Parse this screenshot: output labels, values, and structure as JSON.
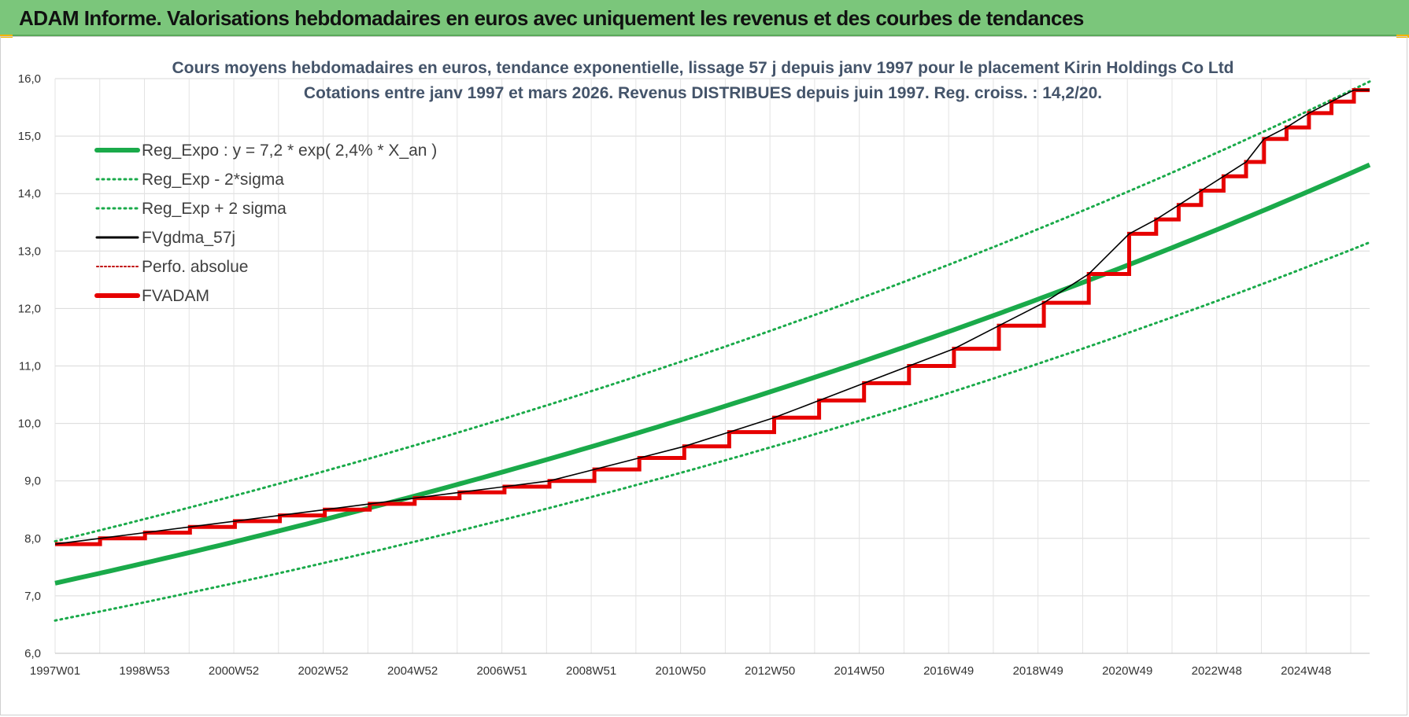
{
  "header": {
    "title": "ADAM Informe. Valorisations hebdomadaires en euros avec uniquement les revenus et des courbes de tendances"
  },
  "colors": {
    "header_bg": "#7bc67b",
    "green": "#1aaa4a",
    "red": "#e60000",
    "black": "#000000",
    "dark_red": "#c00000",
    "title_text": "#44546a",
    "accent_corner": "#f2b400"
  },
  "chart_data": {
    "type": "line",
    "title_line1": "Cours moyens hebdomadaires en euros, tendance exponentielle, lissage 57 j depuis janv 1997 pour le placement Kirin Holdings Co Ltd",
    "title_line2": "Cotations entre janv 1997 et mars 2026. Revenus DISTRIBUES depuis juin 1997. Reg. croiss. : 14,2/20.",
    "x_ticks": [
      "1997W01",
      "1998W53",
      "2000W52",
      "2002W52",
      "2004W52",
      "2006W51",
      "2008W51",
      "2010W50",
      "2012W50",
      "2014W50",
      "2016W49",
      "2018W49",
      "2020W49",
      "2022W48",
      "2024W48"
    ],
    "x_range": [
      1997.0,
      2026.25
    ],
    "ylim": [
      6.0,
      16.0
    ],
    "y_ticks": [
      "6,0",
      "7,0",
      "8,0",
      "9,0",
      "10,0",
      "11,0",
      "12,0",
      "13,0",
      "14,0",
      "15,0",
      "16,0"
    ],
    "grid": true,
    "legend_position": "top-left",
    "series": [
      {
        "name": "Reg_Expo : y = 7,2 * exp( 2,4% *  X_an )",
        "style": "solid-thick",
        "color": "#1aaa4a",
        "start": 7.22,
        "end": 14.5
      },
      {
        "name": "Reg_Exp - 2*sigma",
        "style": "dotted",
        "color": "#1aaa4a",
        "start": 6.57,
        "end": 13.15
      },
      {
        "name": "Reg_Exp + 2 sigma",
        "style": "dotted",
        "color": "#1aaa4a",
        "start": 7.95,
        "end": 15.95
      },
      {
        "name": "FVgdma_57j",
        "style": "solid-thin",
        "color": "#000000"
      },
      {
        "name": "Perfo. absolue",
        "style": "dotted",
        "color": "#c00000"
      },
      {
        "name": "FVADAM",
        "style": "step-thick",
        "color": "#e60000",
        "points": [
          [
            1997.0,
            7.9
          ],
          [
            1998.0,
            8.0
          ],
          [
            1999.0,
            8.1
          ],
          [
            2000.0,
            8.2
          ],
          [
            2001.0,
            8.3
          ],
          [
            2002.0,
            8.4
          ],
          [
            2003.0,
            8.5
          ],
          [
            2004.0,
            8.6
          ],
          [
            2005.0,
            8.7
          ],
          [
            2006.0,
            8.8
          ],
          [
            2007.0,
            8.9
          ],
          [
            2008.0,
            9.0
          ],
          [
            2009.0,
            9.2
          ],
          [
            2010.0,
            9.4
          ],
          [
            2011.0,
            9.6
          ],
          [
            2012.0,
            9.85
          ],
          [
            2013.0,
            10.1
          ],
          [
            2014.0,
            10.4
          ],
          [
            2015.0,
            10.7
          ],
          [
            2016.0,
            11.0
          ],
          [
            2017.0,
            11.3
          ],
          [
            2018.0,
            11.7
          ],
          [
            2019.0,
            12.1
          ],
          [
            2020.0,
            12.6
          ],
          [
            2020.9,
            13.3
          ],
          [
            2021.5,
            13.55
          ],
          [
            2022.0,
            13.8
          ],
          [
            2022.5,
            14.05
          ],
          [
            2023.0,
            14.3
          ],
          [
            2023.5,
            14.55
          ],
          [
            2023.9,
            14.95
          ],
          [
            2024.4,
            15.15
          ],
          [
            2024.9,
            15.4
          ],
          [
            2025.4,
            15.6
          ],
          [
            2025.9,
            15.8
          ],
          [
            2026.25,
            15.8
          ]
        ]
      }
    ]
  }
}
